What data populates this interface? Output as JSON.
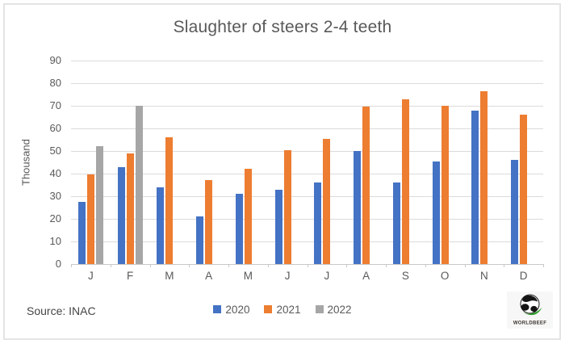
{
  "chart_data": {
    "type": "bar",
    "title": "Slaughter of steers 2-4 teeth",
    "xlabel": "",
    "ylabel": "Thousand",
    "ylim": [
      0,
      90
    ],
    "ytick_step": 10,
    "grid": true,
    "legend_position": "bottom",
    "categories": [
      "J",
      "F",
      "M",
      "A",
      "M",
      "J",
      "J",
      "A",
      "S",
      "O",
      "N",
      "D"
    ],
    "series": [
      {
        "name": "2020",
        "color": "#4472C4",
        "values": [
          27.5,
          43,
          34,
          21,
          31,
          33,
          36,
          50,
          36,
          45.5,
          68,
          46
        ]
      },
      {
        "name": "2021",
        "color": "#ED7D31",
        "values": [
          39.5,
          49,
          56,
          37,
          42,
          50.5,
          55.5,
          69.5,
          73,
          70,
          76.5,
          66
        ]
      },
      {
        "name": "2022",
        "color": "#A6A6A6",
        "values": [
          52,
          70,
          null,
          null,
          null,
          null,
          null,
          null,
          null,
          null,
          null,
          null
        ]
      }
    ]
  },
  "footer": {
    "source_label": "Source: INAC"
  },
  "logo": {
    "text": "WORLDBEEF",
    "globe_green": "#2FA12E"
  },
  "colors": {
    "text": "#595959",
    "gridline": "#DBDBDB",
    "axis": "#C9C9C9",
    "frame_border": "#E4E4E4"
  }
}
